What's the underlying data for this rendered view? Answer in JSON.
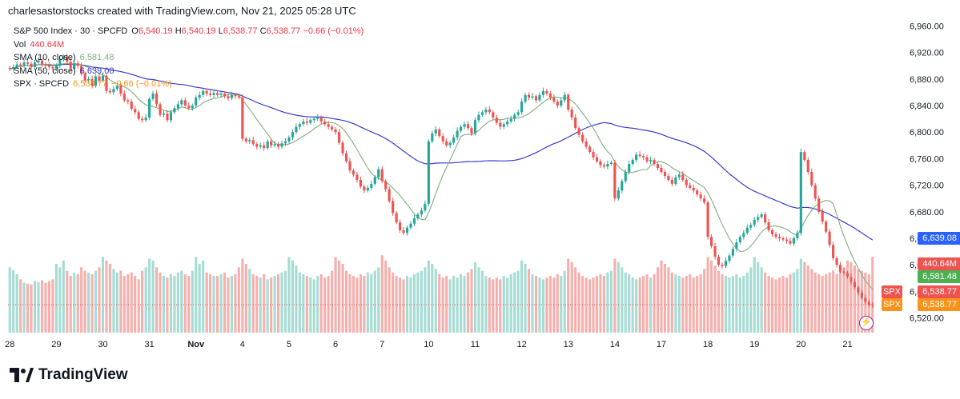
{
  "attribution": "charlesastorstocks created with TradingView.com, Nov 21, 2025 05:28 UTC",
  "brand": "TradingView",
  "legend": {
    "title": "S&P 500 Index · 30 · SPCFD",
    "o_label": "O",
    "o": "6,540.19",
    "h_label": "H",
    "h": "6,540.19",
    "l_label": "L",
    "l": "6,538.77",
    "c_label": "C",
    "c": "6,538.77",
    "change": "−0.66 (−0.01%)",
    "vol_label": "Vol",
    "vol": "440.64M",
    "sma10_label": "SMA (10, close)",
    "sma10": "6,581.48",
    "sma50_label": "SMA (50, close)",
    "sma50": "6,639.08",
    "spx_label": "SPX · SPCFD",
    "spx": "6,538.77",
    "spx_change": "−0.66 (−0.01%)"
  },
  "price_tags": {
    "sma50": "6,639.08",
    "vol": "440.64M",
    "sma10": "6,581.48",
    "spx_sym": "SPX",
    "close1": "6,538.77",
    "close2": "6,538.77"
  },
  "colors": {
    "up": "#26a69a",
    "down": "#ef5350",
    "sma10": "#7cb07a",
    "sma50": "#3b3ccf",
    "spx": "#f7931a",
    "vol_up": "#a6dcd4",
    "vol_down": "#f5b0ad",
    "tag_blue": "#2962ff",
    "tag_red": "#ef5350",
    "tag_green": "#4caf50",
    "tag_orange": "#f7931a"
  },
  "chart_data": {
    "type": "candlestick",
    "title": "S&P 500 Index · 30 · SPCFD",
    "y_ticks": [
      6520,
      6560,
      6600,
      6640,
      6680,
      6720,
      6760,
      6800,
      6840,
      6880,
      6920,
      6960
    ],
    "y_tick_labels": [
      "6,520.00",
      "6,560.00",
      "6,600.00",
      "6,640.00",
      "6,680.00",
      "6,720.00",
      "6,760.00",
      "6,800.00",
      "6,840.00",
      "6,880.00",
      "6,920.00",
      "6,960.00"
    ],
    "ylim": [
      6505,
      6975
    ],
    "x_labels": [
      "28",
      "29",
      "30",
      "31",
      "Nov",
      "4",
      "5",
      "6",
      "7",
      "10",
      "11",
      "12",
      "13",
      "14",
      "17",
      "18",
      "19",
      "20",
      "21"
    ],
    "grid": false,
    "close_series": [
      {
        "d": "28",
        "c": [
          6895,
          6898,
          6902,
          6900,
          6905,
          6903,
          6898,
          6905,
          6908,
          6902,
          6900,
          6898,
          6896
        ]
      },
      {
        "d": "29",
        "c": [
          6900,
          6910,
          6914,
          6906,
          6896,
          6904,
          6900,
          6888,
          6878,
          6880,
          6870,
          6884,
          6878
        ]
      },
      {
        "d": "30",
        "c": [
          6885,
          6862,
          6860,
          6865,
          6870,
          6858,
          6848,
          6846,
          6835,
          6830,
          6820,
          6818,
          6822
        ]
      },
      {
        "d": "31",
        "c": [
          6850,
          6858,
          6842,
          6826,
          6828,
          6818,
          6830,
          6836,
          6842,
          6848,
          6840,
          6836,
          6840
        ]
      },
      {
        "d": "Nov",
        "c": [
          6852,
          6856,
          6862,
          6858,
          6856,
          6859,
          6856,
          6858,
          6854,
          6851,
          6856,
          6854,
          6852
        ]
      },
      {
        "d": "4",
        "c": [
          6790,
          6786,
          6788,
          6782,
          6778,
          6780,
          6776,
          6786,
          6780,
          6782,
          6778,
          6783,
          6786
        ]
      },
      {
        "d": "5",
        "c": [
          6792,
          6800,
          6808,
          6812,
          6816,
          6814,
          6818,
          6820,
          6822,
          6816,
          6812,
          6808,
          6804
        ]
      },
      {
        "d": "6",
        "c": [
          6800,
          6784,
          6768,
          6756,
          6742,
          6736,
          6728,
          6718,
          6712,
          6716,
          6722,
          6732,
          6744
        ]
      },
      {
        "d": "7",
        "c": [
          6726,
          6714,
          6696,
          6678,
          6664,
          6652,
          6648,
          6656,
          6662,
          6670,
          6676,
          6682,
          6692
        ]
      },
      {
        "d": "10",
        "c": [
          6786,
          6798,
          6804,
          6794,
          6786,
          6780,
          6784,
          6792,
          6802,
          6808,
          6812,
          6806,
          6798
        ]
      },
      {
        "d": "11",
        "c": [
          6818,
          6826,
          6830,
          6834,
          6830,
          6822,
          6814,
          6808,
          6812,
          6816,
          6820,
          6826,
          6830
        ]
      },
      {
        "d": "12",
        "c": [
          6846,
          6856,
          6852,
          6854,
          6848,
          6856,
          6862,
          6858,
          6852,
          6846,
          6840,
          6848,
          6856
        ]
      },
      {
        "d": "13",
        "c": [
          6834,
          6822,
          6806,
          6796,
          6786,
          6778,
          6770,
          6762,
          6756,
          6750,
          6748,
          6752,
          6754
        ]
      },
      {
        "d": "14",
        "c": [
          6700,
          6712,
          6726,
          6740,
          6752,
          6758,
          6766,
          6764,
          6762,
          6756,
          6758,
          6752,
          6746
        ]
      },
      {
        "d": "17",
        "c": [
          6740,
          6734,
          6728,
          6722,
          6732,
          6736,
          6728,
          6720,
          6716,
          6712,
          6706,
          6700,
          6694
        ]
      },
      {
        "d": "18",
        "c": [
          6642,
          6628,
          6612,
          6600,
          6598,
          6606,
          6614,
          6624,
          6634,
          6642,
          6648,
          6656,
          6660
        ]
      },
      {
        "d": "19",
        "c": [
          6668,
          6672,
          6676,
          6664,
          6652,
          6646,
          6642,
          6640,
          6638,
          6636,
          6632,
          6640,
          6648
        ]
      },
      {
        "d": "20",
        "c": [
          6770,
          6758,
          6740,
          6720,
          6700,
          6680,
          6665,
          6650,
          6630,
          6610,
          6600,
          6590,
          6588
        ]
      },
      {
        "d": "21",
        "c": [
          6582,
          6574,
          6566,
          6558,
          6550,
          6544,
          6540,
          6539
        ]
      }
    ],
    "volume_series": [
      {
        "d": "28",
        "v": [
          380,
          365,
          340,
          310,
          290,
          285,
          280,
          300,
          295,
          305,
          290,
          300,
          310
        ]
      },
      {
        "d": "29",
        "v": [
          400,
          380,
          420,
          360,
          330,
          350,
          340,
          380,
          360,
          350,
          340,
          360,
          380
        ]
      },
      {
        "d": "30",
        "v": [
          440,
          420,
          400,
          370,
          350,
          360,
          330,
          340,
          350,
          330,
          310,
          360,
          380
        ]
      },
      {
        "d": "31",
        "v": [
          430,
          420,
          380,
          350,
          330,
          320,
          340,
          330,
          350,
          360,
          340,
          330,
          360
        ]
      },
      {
        "d": "Nov",
        "v": [
          440,
          400,
          420,
          350,
          340,
          330,
          330,
          340,
          350,
          320,
          330,
          340,
          380
        ]
      },
      {
        "d": "4",
        "v": [
          430,
          400,
          370,
          340,
          330,
          320,
          340,
          310,
          320,
          330,
          340,
          350,
          360
        ]
      },
      {
        "d": "5",
        "v": [
          440,
          420,
          390,
          350,
          340,
          330,
          320,
          310,
          330,
          340,
          320,
          330,
          360
        ]
      },
      {
        "d": "6",
        "v": [
          440,
          420,
          400,
          360,
          340,
          330,
          320,
          340,
          330,
          350,
          340,
          360,
          380
        ]
      },
      {
        "d": "7",
        "v": [
          450,
          420,
          380,
          350,
          330,
          320,
          310,
          330,
          320,
          340,
          350,
          360,
          380
        ]
      },
      {
        "d": "10",
        "v": [
          420,
          400,
          370,
          340,
          320,
          330,
          310,
          330,
          320,
          340,
          330,
          350,
          370
        ]
      },
      {
        "d": "11",
        "v": [
          410,
          380,
          360,
          330,
          320,
          310,
          320,
          310,
          330,
          320,
          340,
          350,
          360
        ]
      },
      {
        "d": "12",
        "v": [
          420,
          400,
          370,
          340,
          330,
          320,
          310,
          320,
          330,
          320,
          340,
          330,
          360
        ]
      },
      {
        "d": "13",
        "v": [
          430,
          410,
          380,
          350,
          330,
          320,
          310,
          320,
          330,
          340,
          330,
          350,
          360
        ]
      },
      {
        "d": "14",
        "v": [
          430,
          410,
          380,
          350,
          340,
          320,
          310,
          320,
          330,
          340,
          320,
          340,
          380
        ]
      },
      {
        "d": "17",
        "v": [
          420,
          400,
          380,
          350,
          340,
          330,
          320,
          330,
          340,
          320,
          330,
          340,
          370
        ]
      },
      {
        "d": "18",
        "v": [
          440,
          420,
          390,
          360,
          340,
          330,
          320,
          330,
          340,
          320,
          330,
          350,
          380
        ]
      },
      {
        "d": "19",
        "v": [
          440,
          410,
          380,
          350,
          330,
          320,
          310,
          320,
          330,
          320,
          340,
          350,
          370
        ]
      },
      {
        "d": "20",
        "v": [
          430,
          410,
          390,
          370,
          350,
          340,
          330,
          340,
          350,
          360,
          340,
          360,
          380
        ]
      },
      {
        "d": "21",
        "v": [
          420,
          410,
          390,
          370,
          360,
          350,
          340,
          441
        ]
      }
    ]
  }
}
